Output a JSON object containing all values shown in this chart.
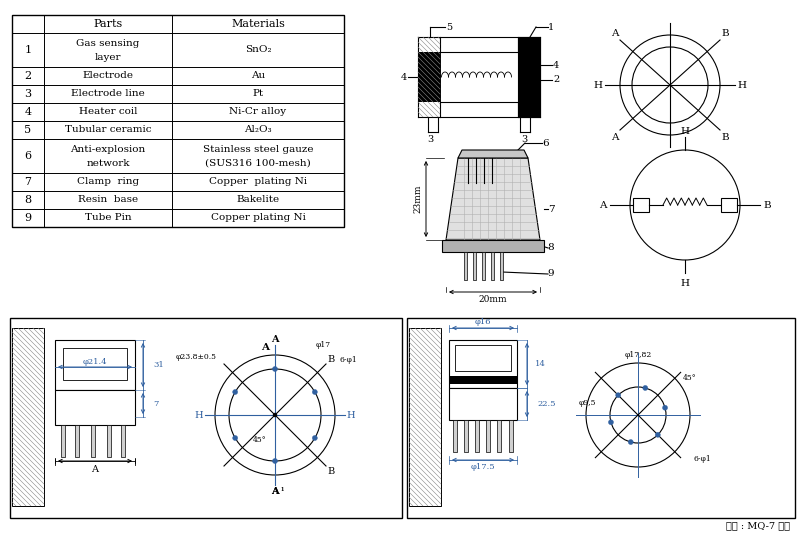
{
  "bg_color": "#ffffff",
  "table_rows": [
    [
      "1",
      "Gas sensing\nlayer",
      "SnO₂"
    ],
    [
      "2",
      "Electrode",
      "Au"
    ],
    [
      "3",
      "Electrode line",
      "Pt"
    ],
    [
      "4",
      "Heater coil",
      "Ni-Cr alloy"
    ],
    [
      "5",
      "Tubular ceramic",
      "Al₂O₃"
    ],
    [
      "6",
      "Anti-explosion\nnetwork",
      "Stainless steel gauze\n(SUS316 100-mesh)"
    ],
    [
      "7",
      "Clamp  ring",
      "Copper  plating Ni"
    ],
    [
      "8",
      "Resin  base",
      "Bakelite"
    ],
    [
      "9",
      "Tube Pin",
      "Copper plating Ni"
    ]
  ],
  "source_text": "출처 : MQ-7 스펙",
  "blue": "#3060a0",
  "gray": "#a0a0a0",
  "darkgray": "#606060",
  "lightgray": "#d8d8d8"
}
